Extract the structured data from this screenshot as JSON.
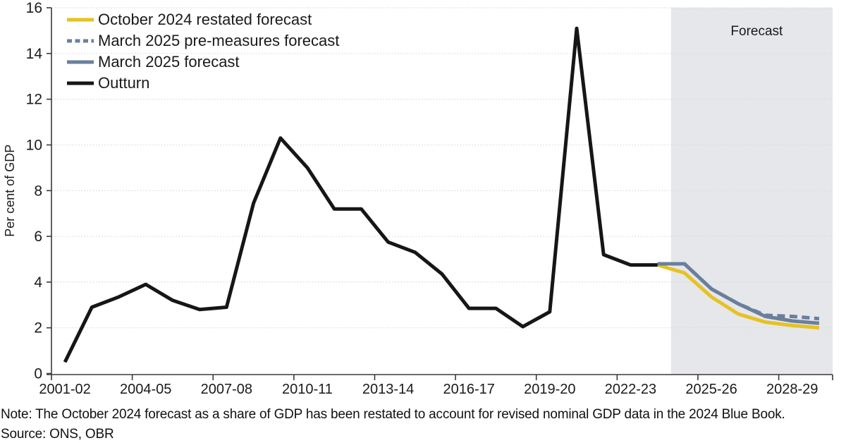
{
  "page": {
    "note": "Note: The October 2024 forecast as a share of GDP has been restated to account for revised nominal GDP data in the 2024 Blue Book.",
    "source": "Source: ONS, OBR"
  },
  "colors": {
    "background": "#ffffff",
    "forecast_band": "#e6e7ea",
    "gridline": "#d9d9d9",
    "axis": "#3a3a3a",
    "text": "#1a1a1a",
    "series_yellow": "#e6c222",
    "series_blue": "#6a7f9d",
    "series_black": "#161616"
  },
  "chart_data": {
    "type": "line",
    "title": "",
    "xlabel": "",
    "ylabel": "Per cent of GDP",
    "ylim": [
      0,
      16
    ],
    "ytick_step": 2,
    "xtick_every": 3,
    "grid": "horizontal-dotted",
    "legend_position": "top-left",
    "categories": [
      "2001-02",
      "2002-03",
      "2003-04",
      "2004-05",
      "2005-06",
      "2006-07",
      "2007-08",
      "2008-09",
      "2009-10",
      "2010-11",
      "2011-12",
      "2012-13",
      "2013-14",
      "2014-15",
      "2015-16",
      "2016-17",
      "2017-18",
      "2018-19",
      "2019-20",
      "2020-21",
      "2021-22",
      "2022-23",
      "2023-24",
      "2024-25",
      "2025-26",
      "2026-27",
      "2027-28",
      "2028-29",
      "2029-30"
    ],
    "forecast_band": {
      "label": "Forecast",
      "start_category": "2024-25"
    },
    "series": [
      {
        "name": "October 2024 restated forecast",
        "color": "#e6c222",
        "dash": false,
        "start_category": "2023-24",
        "values": [
          4.75,
          4.4,
          3.35,
          2.6,
          2.25,
          2.1,
          2.0
        ]
      },
      {
        "name": "March 2025 pre-measures forecast",
        "color": "#6a7f9d",
        "dash": true,
        "start_category": "2023-24",
        "values": [
          4.8,
          4.8,
          3.7,
          3.05,
          2.55,
          2.5,
          2.4
        ]
      },
      {
        "name": "March 2025 forecast",
        "color": "#6a7f9d",
        "dash": false,
        "start_category": "2023-24",
        "values": [
          4.8,
          4.8,
          3.7,
          3.05,
          2.5,
          2.3,
          2.2
        ]
      },
      {
        "name": "Outturn",
        "color": "#161616",
        "dash": false,
        "start_category": "2001-02",
        "values": [
          0.5,
          2.9,
          3.35,
          3.9,
          3.2,
          2.8,
          2.9,
          7.45,
          10.3,
          9.0,
          7.2,
          7.2,
          5.75,
          5.3,
          4.35,
          2.85,
          2.85,
          2.05,
          2.7,
          15.1,
          5.2,
          4.75,
          4.75
        ]
      }
    ],
    "paint_order": [
      0,
      2,
      1,
      3
    ]
  }
}
